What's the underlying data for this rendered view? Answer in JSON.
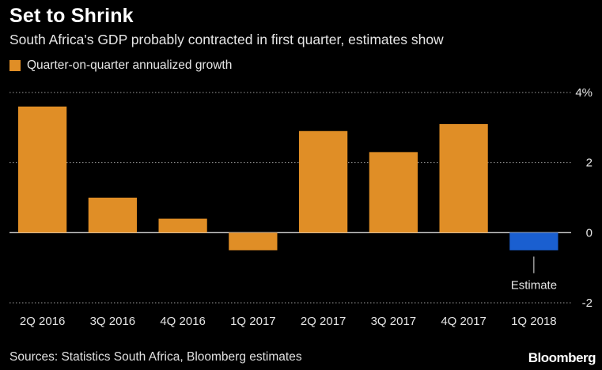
{
  "chart_data": {
    "type": "bar",
    "title": "Set to Shrink",
    "subtitle": "South Africa's GDP probably contracted in first quarter, estimates show",
    "legend": [
      {
        "label": "Quarter-on-quarter annualized growth",
        "color": "#e08e26"
      }
    ],
    "categories": [
      "2Q 2016",
      "3Q 2016",
      "4Q 2016",
      "1Q 2017",
      "2Q 2017",
      "3Q 2017",
      "4Q 2017",
      "1Q 2018"
    ],
    "values": [
      3.6,
      1.0,
      0.4,
      -0.5,
      2.9,
      2.3,
      3.1,
      -0.5
    ],
    "colors": [
      "#e08e26",
      "#e08e26",
      "#e08e26",
      "#e08e26",
      "#e08e26",
      "#e08e26",
      "#e08e26",
      "#1a5fd0"
    ],
    "ylim": [
      -2,
      4
    ],
    "yticks": [
      {
        "value": 4,
        "label": "4%"
      },
      {
        "value": 2,
        "label": "2"
      },
      {
        "value": 0,
        "label": "0"
      },
      {
        "value": -2,
        "label": "-2"
      }
    ],
    "annotation": {
      "category": "1Q 2018",
      "text": "Estimate"
    },
    "grid": true,
    "source": "Sources: Statistics South Africa, Bloomberg estimates",
    "brand": "Bloomberg"
  }
}
